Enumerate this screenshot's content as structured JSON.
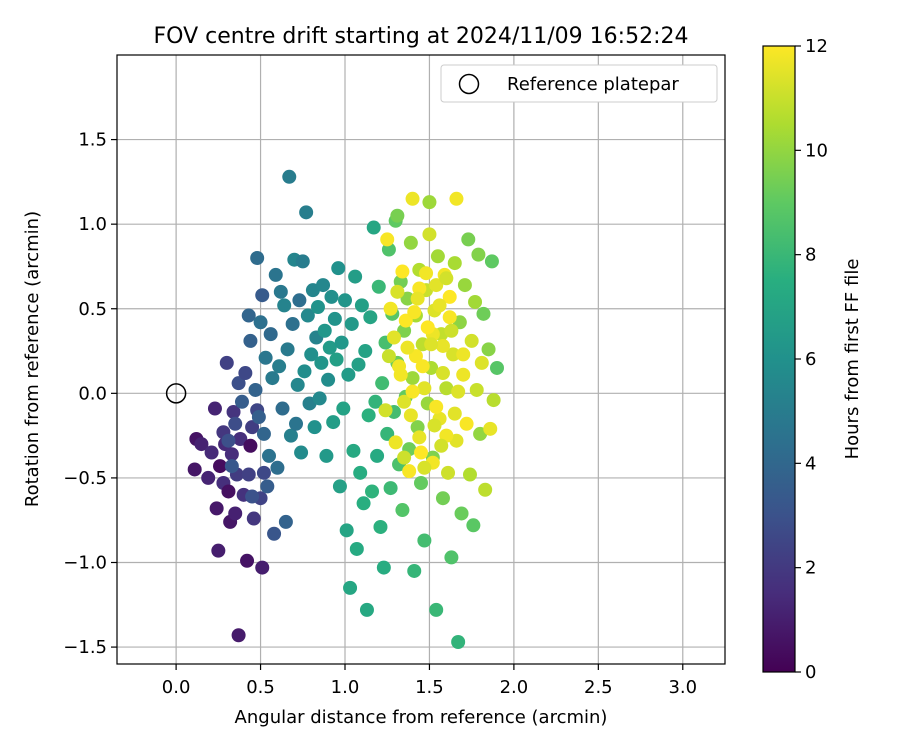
{
  "chart_data": {
    "type": "scatter",
    "title": "FOV centre drift starting at 2024/11/09 16:52:24",
    "xlabel": "Angular distance from reference (arcmin)",
    "ylabel": "Rotation from reference (arcmin)",
    "xlim": [
      -0.35,
      3.25
    ],
    "ylim": [
      -1.6,
      2.0
    ],
    "xticks": [
      0.0,
      0.5,
      1.0,
      1.5,
      2.0,
      2.5,
      3.0
    ],
    "xtick_labels": [
      "0.0",
      "0.5",
      "1.0",
      "1.5",
      "2.0",
      "2.5",
      "3.0"
    ],
    "yticks": [
      -1.5,
      -1.0,
      -0.5,
      0.0,
      0.5,
      1.0,
      1.5
    ],
    "ytick_labels": [
      "−1.5",
      "−1.0",
      "−0.5",
      "0.0",
      "0.5",
      "1.0",
      "1.5"
    ],
    "grid": true,
    "legend": {
      "position": "top-right",
      "entries": [
        "Reference platepar"
      ]
    },
    "reference_point": [
      0.0,
      0.0
    ],
    "colorbar": {
      "label": "Hours from first FF file",
      "range": [
        0,
        12
      ],
      "ticks": [
        0,
        2,
        4,
        6,
        8,
        10,
        12
      ],
      "tick_labels": [
        "0",
        "2",
        "4",
        "6",
        "8",
        "10",
        "12"
      ],
      "colormap": "viridis"
    },
    "points": [
      [
        0.11,
        -0.45,
        0.7
      ],
      [
        0.12,
        -0.27,
        0.6
      ],
      [
        0.15,
        -0.3,
        1.1
      ],
      [
        0.19,
        -0.5,
        1.2
      ],
      [
        0.21,
        -0.35,
        1.4
      ],
      [
        0.23,
        -0.09,
        1.2
      ],
      [
        0.24,
        -0.68,
        0.8
      ],
      [
        0.25,
        -0.93,
        1.0
      ],
      [
        0.26,
        -0.43,
        0.4
      ],
      [
        0.28,
        -0.23,
        1.9
      ],
      [
        0.28,
        -0.53,
        1.6
      ],
      [
        0.29,
        -0.3,
        1.4
      ],
      [
        0.31,
        -0.58,
        0.5
      ],
      [
        0.32,
        -0.76,
        0.7
      ],
      [
        0.33,
        -0.36,
        1.5
      ],
      [
        0.34,
        -0.11,
        1.8
      ],
      [
        0.35,
        -0.71,
        1.1
      ],
      [
        0.36,
        -0.48,
        2.1
      ],
      [
        0.37,
        -1.43,
        0.9
      ],
      [
        0.38,
        -0.27,
        1.6
      ],
      [
        0.4,
        -0.6,
        1.7
      ],
      [
        0.42,
        -0.99,
        0.6
      ],
      [
        0.43,
        -0.48,
        2.3
      ],
      [
        0.44,
        -0.31,
        0.4
      ],
      [
        0.45,
        -0.2,
        2.2
      ],
      [
        0.46,
        -0.74,
        1.9
      ],
      [
        0.48,
        -0.1,
        2.5
      ],
      [
        0.5,
        -0.62,
        2.4
      ],
      [
        0.51,
        -1.03,
        1.0
      ],
      [
        0.52,
        -0.47,
        2.6
      ],
      [
        0.3,
        0.18,
        2.3
      ],
      [
        0.31,
        -0.28,
        2.9
      ],
      [
        0.33,
        -0.43,
        3.3
      ],
      [
        0.35,
        -0.18,
        2.8
      ],
      [
        0.37,
        0.06,
        2.9
      ],
      [
        0.39,
        -0.05,
        3.5
      ],
      [
        0.41,
        0.12,
        2.6
      ],
      [
        0.43,
        0.46,
        3.9
      ],
      [
        0.44,
        0.31,
        3.7
      ],
      [
        0.45,
        -0.61,
        3.0
      ],
      [
        0.47,
        0.02,
        3.8
      ],
      [
        0.48,
        0.8,
        4.2
      ],
      [
        0.49,
        -0.14,
        3.6
      ],
      [
        0.5,
        0.42,
        4.4
      ],
      [
        0.51,
        0.58,
        3.4
      ],
      [
        0.52,
        -0.24,
        3.9
      ],
      [
        0.53,
        0.21,
        4.7
      ],
      [
        0.54,
        -0.55,
        3.5
      ],
      [
        0.55,
        -0.37,
        4.5
      ],
      [
        0.56,
        0.35,
        4.1
      ],
      [
        0.57,
        0.09,
        4.9
      ],
      [
        0.58,
        -0.83,
        3.2
      ],
      [
        0.59,
        0.7,
        4.6
      ],
      [
        0.6,
        -0.44,
        4.3
      ],
      [
        0.61,
        0.16,
        5.1
      ],
      [
        0.62,
        0.6,
        4.8
      ],
      [
        0.63,
        -0.09,
        4.2
      ],
      [
        0.64,
        0.52,
        5.3
      ],
      [
        0.65,
        -0.76,
        3.8
      ],
      [
        0.66,
        0.26,
        4.9
      ],
      [
        0.67,
        1.28,
        5.0
      ],
      [
        0.68,
        -0.25,
        5.2
      ],
      [
        0.69,
        0.41,
        4.4
      ],
      [
        0.7,
        0.79,
        5.4
      ],
      [
        0.71,
        -0.18,
        4.6
      ],
      [
        0.72,
        0.05,
        5.5
      ],
      [
        0.73,
        0.55,
        4.3
      ],
      [
        0.74,
        -0.35,
        5.7
      ],
      [
        0.75,
        0.78,
        5.0
      ],
      [
        0.76,
        0.13,
        5.8
      ],
      [
        0.77,
        1.07,
        5.1
      ],
      [
        0.78,
        0.46,
        5.6
      ],
      [
        0.79,
        -0.06,
        5.2
      ],
      [
        0.8,
        0.23,
        5.9
      ],
      [
        0.81,
        0.61,
        5.4
      ],
      [
        0.82,
        -0.2,
        6.0
      ],
      [
        0.83,
        0.33,
        5.3
      ],
      [
        0.84,
        0.51,
        6.1
      ],
      [
        0.85,
        -0.03,
        5.6
      ],
      [
        0.86,
        0.18,
        6.2
      ],
      [
        0.87,
        0.64,
        5.5
      ],
      [
        0.88,
        0.37,
        6.3
      ],
      [
        0.89,
        -0.37,
        6.4
      ],
      [
        0.9,
        0.08,
        5.8
      ],
      [
        0.91,
        0.27,
        6.5
      ],
      [
        0.92,
        0.57,
        5.9
      ],
      [
        0.93,
        -0.17,
        6.6
      ],
      [
        0.94,
        0.44,
        6.1
      ],
      [
        0.95,
        0.2,
        6.7
      ],
      [
        0.96,
        0.74,
        6.0
      ],
      [
        0.97,
        -0.55,
        6.8
      ],
      [
        0.98,
        0.3,
        6.3
      ],
      [
        0.99,
        -0.09,
        6.9
      ],
      [
        1.0,
        0.55,
        6.2
      ],
      [
        1.01,
        -0.81,
        7.0
      ],
      [
        1.02,
        0.11,
        6.5
      ],
      [
        1.03,
        -1.15,
        7.1
      ],
      [
        1.04,
        0.41,
        6.4
      ],
      [
        1.05,
        -0.34,
        7.2
      ],
      [
        1.06,
        0.69,
        6.6
      ],
      [
        1.07,
        -0.92,
        7.3
      ],
      [
        1.08,
        0.17,
        6.8
      ],
      [
        1.09,
        -0.47,
        7.4
      ],
      [
        1.1,
        0.52,
        6.7
      ],
      [
        1.11,
        -0.65,
        7.5
      ],
      [
        1.12,
        0.25,
        6.9
      ],
      [
        1.13,
        -1.28,
        7.2
      ],
      [
        1.14,
        -0.13,
        7.6
      ],
      [
        1.15,
        0.45,
        7.0
      ],
      [
        1.16,
        -0.58,
        7.7
      ],
      [
        1.17,
        0.98,
        7.1
      ],
      [
        1.18,
        -0.05,
        7.8
      ],
      [
        1.19,
        -0.37,
        7.3
      ],
      [
        1.2,
        0.63,
        8.0
      ],
      [
        1.21,
        -0.79,
        7.6
      ],
      [
        1.22,
        0.06,
        8.2
      ],
      [
        1.23,
        -1.03,
        7.4
      ],
      [
        1.24,
        0.3,
        8.4
      ],
      [
        1.25,
        -0.24,
        7.9
      ],
      [
        1.26,
        0.85,
        8.6
      ],
      [
        1.27,
        -0.56,
        8.1
      ],
      [
        1.28,
        0.47,
        8.8
      ],
      [
        1.29,
        -0.11,
        8.3
      ],
      [
        1.3,
        1.02,
        9.0
      ],
      [
        1.31,
        0.18,
        9.2
      ],
      [
        1.32,
        -0.42,
        8.5
      ],
      [
        1.33,
        0.66,
        9.4
      ],
      [
        1.34,
        -0.69,
        8.7
      ],
      [
        1.35,
        0.37,
        9.6
      ],
      [
        1.36,
        -0.02,
        9.1
      ],
      [
        1.37,
        0.56,
        9.8
      ],
      [
        1.38,
        -0.33,
        9.3
      ],
      [
        1.39,
        0.89,
        10.0
      ],
      [
        1.4,
        0.09,
        10.2
      ],
      [
        1.41,
        -1.05,
        7.9
      ],
      [
        1.42,
        0.46,
        10.4
      ],
      [
        1.43,
        -0.2,
        9.7
      ],
      [
        1.44,
        0.73,
        10.6
      ],
      [
        1.45,
        -0.53,
        9.1
      ],
      [
        1.46,
        0.29,
        10.8
      ],
      [
        1.47,
        -0.87,
        8.3
      ],
      [
        1.48,
        0.61,
        11.0
      ],
      [
        1.49,
        -0.06,
        10.1
      ],
      [
        1.5,
        0.94,
        11.2
      ],
      [
        1.51,
        0.15,
        10.5
      ],
      [
        1.52,
        -0.38,
        9.6
      ],
      [
        1.53,
        0.49,
        11.4
      ],
      [
        1.54,
        -1.28,
        8.0
      ],
      [
        1.55,
        0.81,
        10.3
      ],
      [
        1.56,
        -0.15,
        11.6
      ],
      [
        1.57,
        0.35,
        10.9
      ],
      [
        1.58,
        -0.62,
        9.4
      ],
      [
        1.59,
        0.7,
        11.8
      ],
      [
        1.6,
        0.03,
        10.7
      ],
      [
        1.61,
        -0.47,
        11.1
      ],
      [
        1.62,
        0.57,
        12.0
      ],
      [
        1.63,
        -0.97,
        8.6
      ],
      [
        1.64,
        0.23,
        11.3
      ],
      [
        1.65,
        0.77,
        10.4
      ],
      [
        1.66,
        -0.28,
        11.5
      ],
      [
        1.67,
        -1.47,
        7.8
      ],
      [
        1.68,
        0.42,
        9.9
      ],
      [
        1.69,
        -0.71,
        9.2
      ],
      [
        1.7,
        0.11,
        11.7
      ],
      [
        1.71,
        0.64,
        10.1
      ],
      [
        1.72,
        -0.18,
        11.9
      ],
      [
        1.73,
        0.91,
        9.5
      ],
      [
        1.74,
        -0.48,
        10.6
      ],
      [
        1.75,
        0.31,
        11.2
      ],
      [
        1.76,
        -0.78,
        8.9
      ],
      [
        1.77,
        0.54,
        10.3
      ],
      [
        1.78,
        0.02,
        11.0
      ],
      [
        1.79,
        0.82,
        9.7
      ],
      [
        1.8,
        -0.24,
        10.0
      ],
      [
        1.81,
        0.18,
        11.4
      ],
      [
        1.82,
        0.47,
        9.3
      ],
      [
        1.83,
        -0.57,
        10.8
      ],
      [
        1.85,
        0.26,
        9.8
      ],
      [
        1.86,
        -0.21,
        11.6
      ],
      [
        1.87,
        0.78,
        9.0
      ],
      [
        1.88,
        -0.04,
        10.7
      ],
      [
        1.9,
        0.15,
        8.8
      ],
      [
        1.66,
        1.15,
        11.8
      ],
      [
        1.5,
        1.13,
        10.2
      ],
      [
        1.31,
        1.05,
        9.5
      ],
      [
        1.4,
        1.15,
        11.7
      ],
      [
        1.25,
        0.91,
        11.9
      ],
      [
        1.34,
        0.72,
        12.0
      ],
      [
        1.44,
        0.62,
        11.9
      ],
      [
        1.27,
        0.5,
        11.8
      ],
      [
        1.36,
        0.43,
        12.0
      ],
      [
        1.52,
        0.35,
        11.7
      ],
      [
        1.58,
        0.28,
        11.6
      ],
      [
        1.42,
        0.22,
        11.9
      ],
      [
        1.33,
        0.11,
        11.8
      ],
      [
        1.47,
        0.03,
        11.5
      ],
      [
        1.54,
        -0.08,
        11.9
      ],
      [
        1.39,
        -0.13,
        11.6
      ],
      [
        1.6,
        -0.25,
        11.8
      ],
      [
        1.3,
        -0.29,
        11.7
      ],
      [
        1.45,
        -0.35,
        12.0
      ],
      [
        1.52,
        -0.41,
        11.8
      ],
      [
        1.38,
        -0.46,
        11.9
      ],
      [
        1.56,
        0.52,
        11.6
      ],
      [
        1.48,
        0.71,
        11.8
      ],
      [
        1.62,
        0.45,
        11.9
      ],
      [
        1.29,
        0.33,
        11.5
      ],
      [
        1.35,
        -0.05,
        11.4
      ],
      [
        1.58,
        0.12,
        11.3
      ],
      [
        1.44,
        -0.26,
        11.6
      ],
      [
        1.24,
        -0.1,
        11.2
      ],
      [
        1.67,
        0.01,
        11.4
      ],
      [
        1.7,
        0.23,
        11.7
      ],
      [
        1.49,
        0.39,
        12.0
      ],
      [
        1.31,
        0.6,
        11.3
      ],
      [
        1.41,
        0.48,
        11.9
      ],
      [
        1.54,
        0.64,
        11.5
      ],
      [
        1.6,
        0.68,
        11.2
      ],
      [
        1.37,
        0.27,
        11.7
      ],
      [
        1.46,
        0.16,
        11.9
      ],
      [
        1.53,
        -0.19,
        11.3
      ],
      [
        1.35,
        -0.38,
        11.1
      ],
      [
        1.43,
        0.56,
        11.6
      ],
      [
        1.65,
        -0.12,
        11.5
      ],
      [
        1.32,
        0.16,
        11.8
      ],
      [
        1.57,
        -0.31,
        11.2
      ],
      [
        1.26,
        0.22,
        11.0
      ],
      [
        1.47,
        -0.44,
        11.3
      ],
      [
        1.63,
        0.37,
        11.1
      ],
      [
        1.4,
        0.01,
        11.9
      ],
      [
        1.51,
        0.29,
        11.4
      ]
    ]
  }
}
